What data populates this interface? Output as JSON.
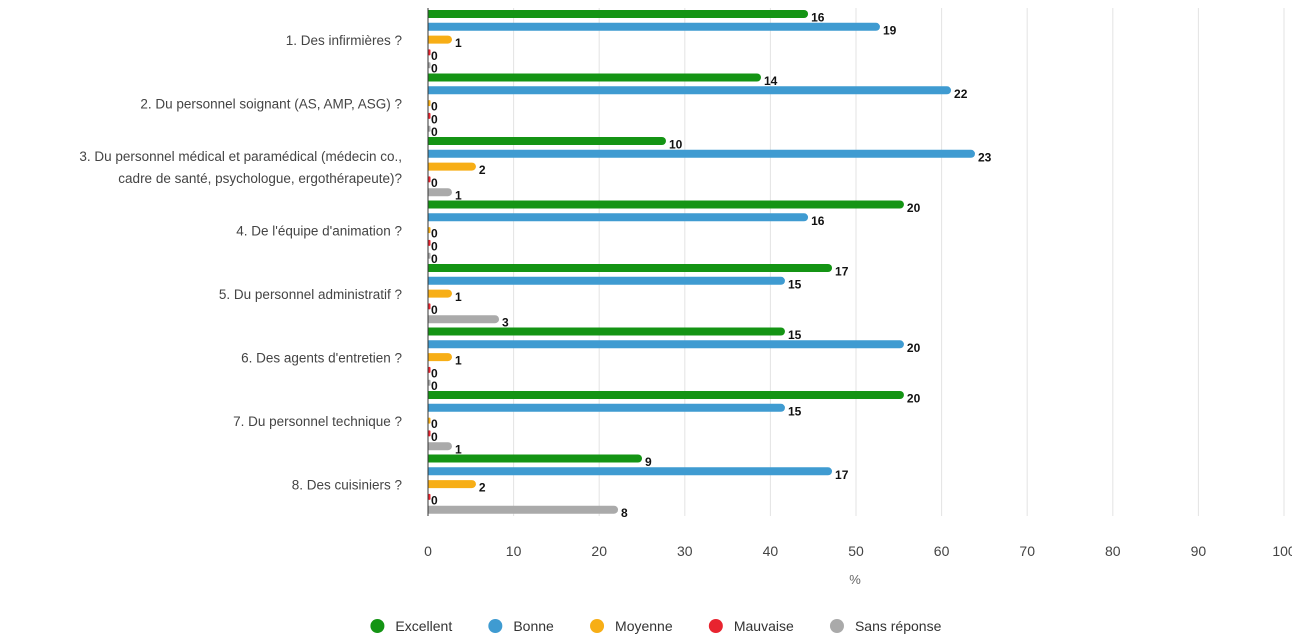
{
  "chart_data": {
    "type": "bar",
    "orientation": "horizontal",
    "categories": [
      [
        "1. Des infirmières ?"
      ],
      [
        "2. Du personnel soignant (AS, AMP, ASG) ?"
      ],
      [
        "3. Du personnel médical et paramédical (médecin co.,",
        "cadre de santé, psychologue, ergothérapeute)?"
      ],
      [
        "4. De l'équipe d'animation ?"
      ],
      [
        "5. Du personnel administratif ?"
      ],
      [
        "6. Des agents d'entretien ?"
      ],
      [
        "7. Du personnel technique ?"
      ],
      [
        "8. Des cuisiniers ?"
      ]
    ],
    "series": [
      {
        "name": "Excellent",
        "color": "#149414",
        "counts": [
          16,
          14,
          10,
          20,
          17,
          15,
          20,
          9
        ],
        "percent": [
          44.4,
          38.9,
          27.8,
          55.6,
          47.2,
          41.7,
          55.6,
          25.0
        ]
      },
      {
        "name": "Bonne",
        "color": "#3f9bd1",
        "counts": [
          19,
          22,
          23,
          16,
          15,
          20,
          15,
          17
        ],
        "percent": [
          52.8,
          61.1,
          63.9,
          44.4,
          41.7,
          55.6,
          41.7,
          47.2
        ]
      },
      {
        "name": "Moyenne",
        "color": "#f7ae16",
        "counts": [
          1,
          0,
          2,
          0,
          1,
          1,
          0,
          2
        ],
        "percent": [
          2.8,
          0,
          5.6,
          0,
          2.8,
          2.8,
          0,
          5.6
        ]
      },
      {
        "name": "Mauvaise",
        "color": "#e8242f",
        "counts": [
          0,
          0,
          0,
          0,
          0,
          0,
          0,
          0
        ],
        "percent": [
          0,
          0,
          0,
          0,
          0,
          0,
          0,
          0
        ]
      },
      {
        "name": "Sans réponse",
        "color": "#aaaaaa",
        "counts": [
          0,
          0,
          1,
          0,
          3,
          0,
          1,
          8
        ],
        "percent": [
          0,
          0,
          2.8,
          0,
          8.3,
          0,
          2.8,
          22.2
        ]
      }
    ],
    "xlabel": "%",
    "xlim": [
      0,
      100
    ],
    "xticks": [
      0,
      10,
      20,
      30,
      40,
      50,
      60,
      70,
      80,
      90,
      100
    ],
    "grid": true,
    "legend_position": "bottom"
  }
}
